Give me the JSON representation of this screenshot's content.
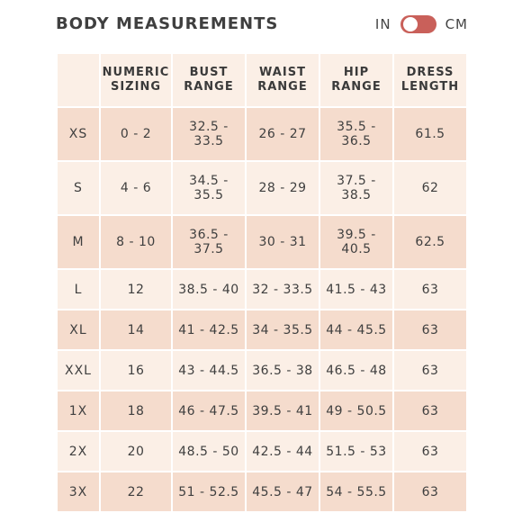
{
  "header": {
    "title": "BODY MEASUREMENTS",
    "unit_left": "IN",
    "unit_right": "CM"
  },
  "columns": [
    "",
    "NUMERIC\nSIZING",
    "BUST\nRANGE",
    "WAIST\nRANGE",
    "HIP\nRANGE",
    "DRESS\nLENGTH"
  ],
  "rows": [
    {
      "size": "XS",
      "numeric": "0 - 2",
      "bust": "32.5 - 33.5",
      "waist": "26 - 27",
      "hip": "35.5 - 36.5",
      "length": "61.5"
    },
    {
      "size": "S",
      "numeric": "4 - 6",
      "bust": "34.5 - 35.5",
      "waist": "28 - 29",
      "hip": "37.5 - 38.5",
      "length": "62"
    },
    {
      "size": "M",
      "numeric": "8 - 10",
      "bust": "36.5 - 37.5",
      "waist": "30 - 31",
      "hip": "39.5 - 40.5",
      "length": "62.5"
    },
    {
      "size": "L",
      "numeric": "12",
      "bust": "38.5 - 40",
      "waist": "32 - 33.5",
      "hip": "41.5 - 43",
      "length": "63"
    },
    {
      "size": "XL",
      "numeric": "14",
      "bust": "41 - 42.5",
      "waist": "34 - 35.5",
      "hip": "44 - 45.5",
      "length": "63"
    },
    {
      "size": "XXL",
      "numeric": "16",
      "bust": "43 - 44.5",
      "waist": "36.5 - 38",
      "hip": "46.5 - 48",
      "length": "63"
    },
    {
      "size": "1X",
      "numeric": "18",
      "bust": "46 - 47.5",
      "waist": "39.5 - 41",
      "hip": "49 - 50.5",
      "length": "63"
    },
    {
      "size": "2X",
      "numeric": "20",
      "bust": "48.5 - 50",
      "waist": "42.5 - 44",
      "hip": "51.5 - 53",
      "length": "63"
    },
    {
      "size": "3X",
      "numeric": "22",
      "bust": "51 - 52.5",
      "waist": "45.5 - 47",
      "hip": "54 - 55.5",
      "length": "63"
    }
  ],
  "colors": {
    "toggle": "#c9605a",
    "row_dark": "#f5dccd",
    "row_light": "#fbefe6"
  }
}
